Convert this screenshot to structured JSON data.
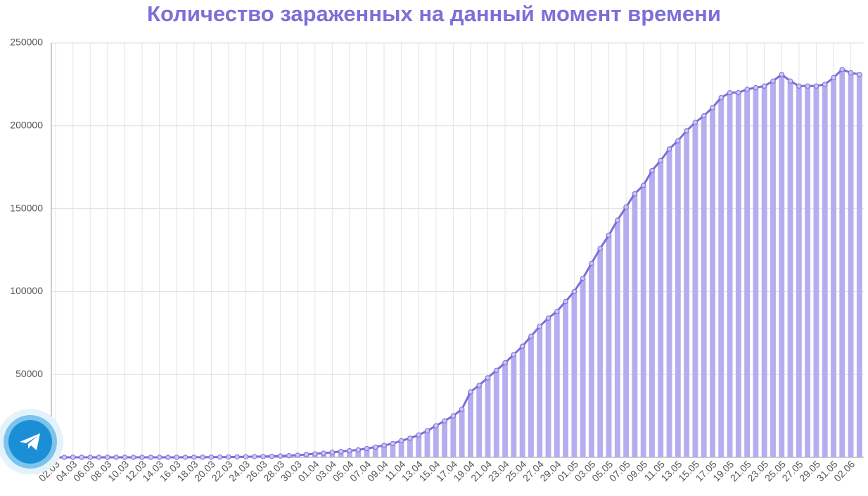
{
  "chart_data": {
    "type": "bar_line",
    "title": "Количество зараженных на данный момент времени",
    "categories": [
      "02.03",
      null,
      "04.03",
      null,
      "06.03",
      null,
      "08.03",
      null,
      "10.03",
      null,
      "12.03",
      null,
      "14.03",
      null,
      "16.03",
      null,
      "18.03",
      null,
      "20.03",
      null,
      "22.03",
      null,
      "24.03",
      null,
      "26.03",
      null,
      "28.03",
      null,
      "30.03",
      null,
      "01.04",
      null,
      "03.04",
      null,
      "05.04",
      null,
      "07.04",
      null,
      "09.04",
      null,
      "11.04",
      null,
      "13.04",
      null,
      "15.04",
      null,
      "17.04",
      null,
      "19.04",
      null,
      "21.04",
      null,
      "23.04",
      null,
      "25.04",
      null,
      "27.04",
      null,
      "29.04",
      null,
      "01.05",
      null,
      "03.05",
      null,
      "05.05",
      null,
      "07.05",
      null,
      "09.05",
      null,
      "11.05",
      null,
      "13.05",
      null,
      "15.05",
      null,
      "17.05",
      null,
      "19.05",
      null,
      "21.05",
      null,
      "23.05",
      null,
      "25.05",
      null,
      "27.05",
      null,
      "29.05",
      null,
      "31.05",
      null,
      "02.06",
      null
    ],
    "values": [
      0,
      0,
      0,
      0,
      0,
      0,
      0,
      0,
      0,
      0,
      0,
      0,
      0,
      10,
      20,
      30,
      40,
      60,
      100,
      130,
      180,
      250,
      300,
      400,
      500,
      600,
      800,
      1000,
      1300,
      1700,
      2100,
      2500,
      3000,
      3500,
      4000,
      4500,
      5300,
      6200,
      7200,
      8300,
      10000,
      11500,
      13500,
      16000,
      19000,
      22000,
      25000,
      29000,
      39500,
      43500,
      48000,
      52500,
      57000,
      62000,
      67000,
      73000,
      79000,
      84000,
      88000,
      94000,
      100000,
      108000,
      117000,
      126000,
      134000,
      143000,
      151000,
      159000,
      164000,
      173000,
      179000,
      186000,
      191000,
      197000,
      202000,
      206000,
      211000,
      217000,
      220000,
      220000,
      222000,
      223000,
      224000,
      227000,
      231000,
      227000,
      224000,
      224000,
      224000,
      225000,
      229000,
      234000,
      232000,
      231000
    ],
    "bar_color": "#b4aef0",
    "line_color": "#7a6fd8",
    "ylim": [
      0,
      250000
    ],
    "yticks": [
      50000,
      100000,
      150000,
      200000,
      250000
    ],
    "grid": true
  }
}
